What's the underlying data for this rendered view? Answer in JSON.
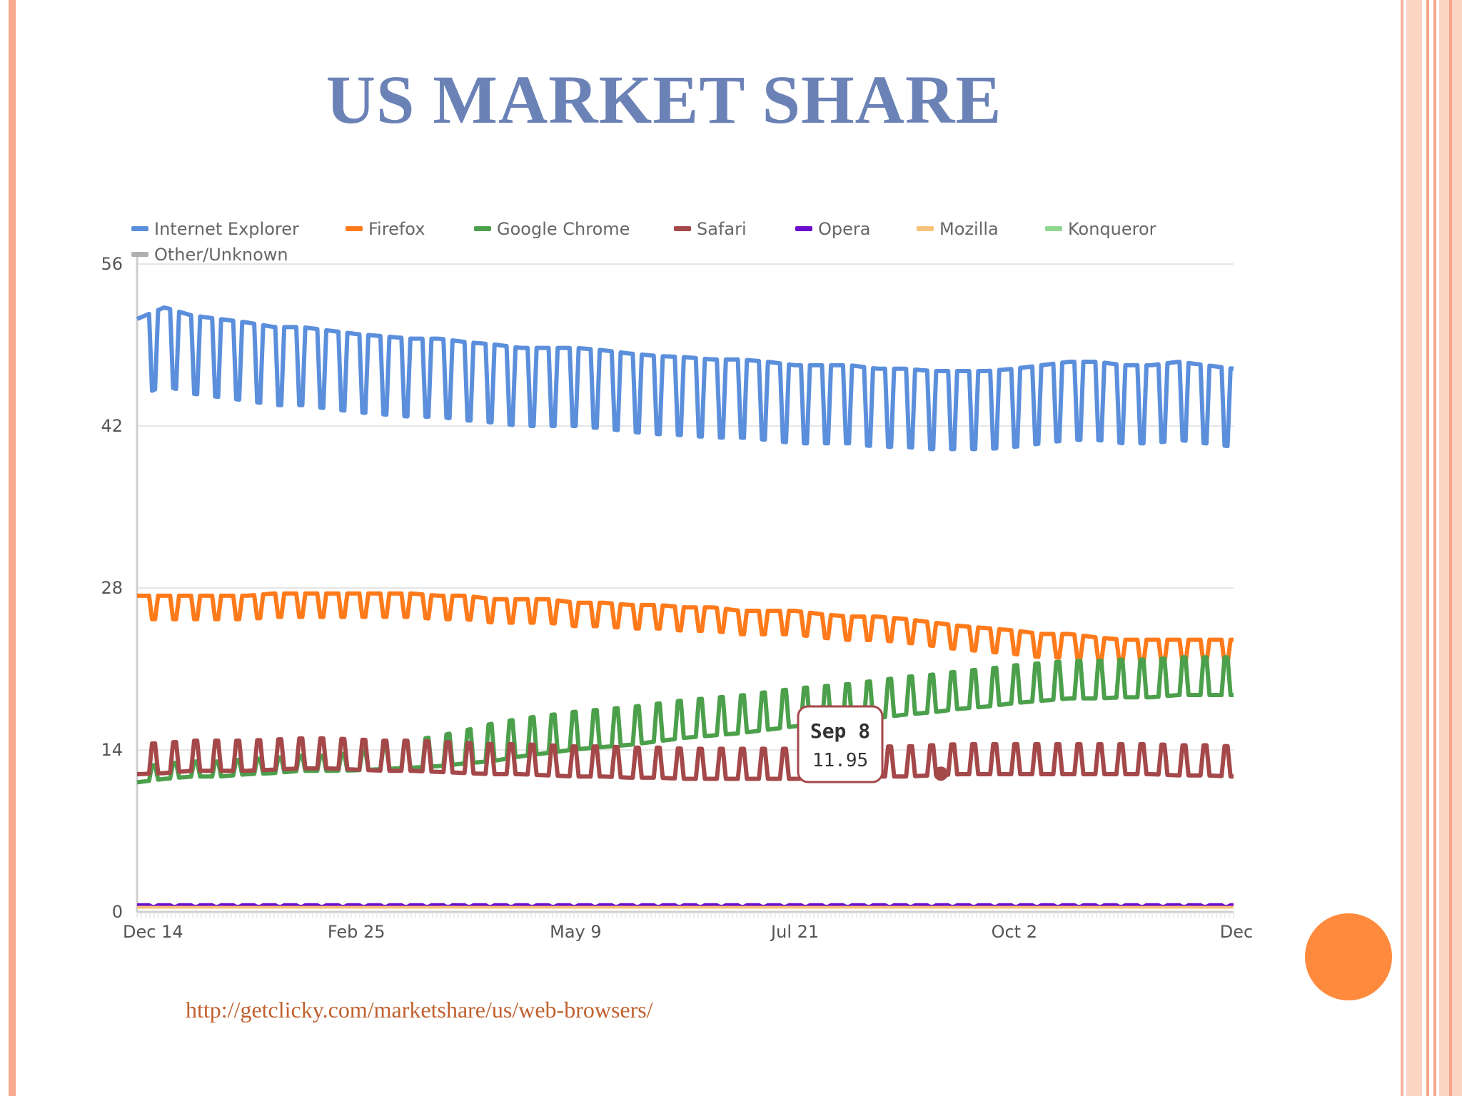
{
  "slide": {
    "title": "US MARKET SHARE",
    "source_url": "http://getclicky.com/marketshare/us/web-browsers/",
    "accent_color": "#6b82b6"
  },
  "chart_data": {
    "type": "line",
    "title": "",
    "xlabel": "",
    "ylabel": "",
    "ylim": [
      0,
      56
    ],
    "yticks": [
      0,
      14,
      28,
      42,
      56
    ],
    "xtick_labels": [
      "Dec 14",
      "Feb 25",
      "May 9",
      "Jul 21",
      "Oct 2",
      "Dec"
    ],
    "grid": true,
    "legend_position": "top",
    "legend": [
      {
        "name": "Internet Explorer",
        "color": "#5b8fdc"
      },
      {
        "name": "Firefox",
        "color": "#ff7a1a"
      },
      {
        "name": "Google Chrome",
        "color": "#4ca04c"
      },
      {
        "name": "Safari",
        "color": "#a5484a"
      },
      {
        "name": "Opera",
        "color": "#6a0dcc"
      },
      {
        "name": "Mozilla",
        "color": "#f9c27a"
      },
      {
        "name": "Konqueror",
        "color": "#8fd68f"
      },
      {
        "name": "Other/Unknown",
        "color": "#b0b0b0"
      }
    ],
    "series": [
      {
        "name": "Internet Explorer",
        "color": "#5b8fdc",
        "values": [
          49.5,
          50.5,
          49.8,
          49.5,
          49.2,
          48.8,
          48.8,
          48.5,
          48.2,
          48.0,
          47.8,
          47.8,
          47.5,
          47.3,
          47.0,
          47.0,
          47.0,
          46.8,
          46.5,
          46.3,
          46.2,
          46.0,
          46.0,
          45.8,
          45.5,
          45.5,
          45.5,
          45.2,
          45.2,
          45.0,
          45.0,
          45.0,
          45.2,
          45.5,
          45.8,
          45.8,
          45.5,
          45.5,
          45.8,
          45.5,
          45.2
        ],
        "amplitude": [
          5,
          5,
          5,
          5,
          5,
          5,
          5,
          5,
          5,
          5,
          5,
          5,
          5,
          5,
          5,
          5,
          5,
          5,
          5,
          5,
          5,
          5,
          5,
          5,
          5,
          5,
          5,
          5,
          5,
          5,
          5,
          5,
          5,
          5,
          5,
          5,
          5,
          5,
          5,
          5,
          5
        ]
      },
      {
        "name": "Firefox",
        "color": "#ff7a1a",
        "values": [
          26.8,
          26.8,
          26.8,
          26.8,
          26.8,
          27.0,
          27.0,
          27.0,
          27.0,
          27.0,
          27.0,
          26.8,
          26.8,
          26.5,
          26.5,
          26.5,
          26.2,
          26.2,
          26.0,
          26.0,
          25.8,
          25.8,
          25.5,
          25.5,
          25.5,
          25.2,
          25.0,
          25.0,
          24.8,
          24.5,
          24.2,
          24.0,
          23.8,
          23.5,
          23.5,
          23.2,
          23.0,
          23.0,
          23.0,
          23.0,
          23.0
        ],
        "amplitude": [
          1.5,
          1.5,
          1.5,
          1.5,
          1.5,
          1.5,
          1.5,
          1.5,
          1.5,
          1.5,
          1.5,
          1.5,
          1.5,
          1.5,
          1.5,
          1.5,
          1.5,
          1.5,
          1.5,
          1.5,
          1.5,
          1.5,
          1.5,
          1.5,
          1.5,
          1.5,
          1.5,
          1.5,
          1.5,
          1.5,
          1.5,
          1.5,
          1.5,
          1.5,
          1.5,
          1.5,
          1.5,
          1.5,
          1.5,
          1.5,
          1.5
        ]
      },
      {
        "name": "Google Chrome",
        "color": "#4ca04c",
        "values": [
          11.5,
          11.8,
          12.0,
          12.0,
          12.2,
          12.3,
          12.5,
          12.5,
          12.6,
          12.8,
          13.0,
          13.2,
          13.5,
          13.8,
          14.2,
          14.5,
          14.8,
          15.0,
          15.2,
          15.5,
          15.8,
          16.0,
          16.2,
          16.5,
          16.8,
          17.0,
          17.2,
          17.5,
          17.8,
          18.0,
          18.3,
          18.5,
          18.8,
          19.0,
          19.2,
          19.2,
          19.3,
          19.3,
          19.5,
          19.5,
          19.5
        ],
        "amplitude": [
          1,
          1,
          1,
          1,
          1,
          1,
          1,
          1,
          1.2,
          1.5,
          1.8,
          2,
          2.2,
          2.5,
          2.5,
          2.5,
          2.5,
          2.5,
          2.5,
          2.5,
          2.5,
          2.5,
          2.5,
          2.5,
          2.5,
          2.5,
          2.5,
          2.5,
          2.5,
          2.5,
          2.5,
          2.5,
          2.5,
          2.5,
          2.5,
          2.5,
          2.5,
          2.5,
          2.5,
          2.5,
          2.5
        ]
      },
      {
        "name": "Safari",
        "color": "#a5484a",
        "values": [
          12.5,
          12.6,
          12.8,
          12.8,
          12.8,
          12.9,
          13.0,
          13.0,
          12.9,
          12.8,
          12.8,
          12.7,
          12.6,
          12.5,
          12.5,
          12.4,
          12.3,
          12.3,
          12.2,
          12.2,
          12.1,
          12.1,
          12.1,
          12.1,
          12.1,
          12.2,
          12.2,
          12.3,
          12.3,
          12.4,
          12.5,
          12.5,
          12.5,
          12.5,
          12.5,
          12.5,
          12.5,
          12.5,
          12.4,
          12.4,
          12.3
        ],
        "amplitude": [
          2,
          2,
          2,
          2,
          2,
          2,
          2,
          2,
          2,
          2,
          2,
          2,
          2,
          2,
          2,
          2,
          2,
          2,
          2,
          2,
          2,
          2,
          2,
          2,
          2,
          2,
          2,
          2,
          2,
          2,
          2,
          2,
          2,
          2,
          2,
          2,
          2,
          2,
          2,
          2,
          2
        ]
      },
      {
        "name": "Opera",
        "color": "#6a0dcc",
        "values": [
          0.6,
          0.6,
          0.6,
          0.6,
          0.6,
          0.6,
          0.6,
          0.6,
          0.6,
          0.6,
          0.6,
          0.6,
          0.6,
          0.6,
          0.6,
          0.6,
          0.6,
          0.6,
          0.6,
          0.6,
          0.6,
          0.6,
          0.6,
          0.6,
          0.6,
          0.6,
          0.6,
          0.6,
          0.6,
          0.6,
          0.6,
          0.6,
          0.6,
          0.6,
          0.6,
          0.6,
          0.6,
          0.6,
          0.6,
          0.6,
          0.6
        ],
        "amplitude": [
          0.1,
          0.1,
          0.1,
          0.1,
          0.1,
          0.1,
          0.1,
          0.1,
          0.1,
          0.1,
          0.1,
          0.1,
          0.1,
          0.1,
          0.1,
          0.1,
          0.1,
          0.1,
          0.1,
          0.1,
          0.1,
          0.1,
          0.1,
          0.1,
          0.1,
          0.1,
          0.1,
          0.1,
          0.1,
          0.1,
          0.1,
          0.1,
          0.1,
          0.1,
          0.1,
          0.1,
          0.1,
          0.1,
          0.1,
          0.1,
          0.1
        ]
      },
      {
        "name": "Mozilla",
        "color": "#f9c27a",
        "values": [
          0.4,
          0.4,
          0.4,
          0.4,
          0.4,
          0.4,
          0.4,
          0.4,
          0.4,
          0.4,
          0.4,
          0.4,
          0.4,
          0.4,
          0.4,
          0.4,
          0.4,
          0.4,
          0.4,
          0.4,
          0.4,
          0.4,
          0.4,
          0.4,
          0.4,
          0.4,
          0.4,
          0.4,
          0.4,
          0.4,
          0.4,
          0.4,
          0.4,
          0.4,
          0.4,
          0.4,
          0.4,
          0.4,
          0.4,
          0.4,
          0.4
        ],
        "amplitude": [
          0,
          0,
          0,
          0,
          0,
          0,
          0,
          0,
          0,
          0,
          0,
          0,
          0,
          0,
          0,
          0,
          0,
          0,
          0,
          0,
          0,
          0,
          0,
          0,
          0,
          0,
          0,
          0,
          0,
          0,
          0,
          0,
          0,
          0,
          0,
          0,
          0,
          0,
          0,
          0,
          0
        ]
      }
    ],
    "tooltip": {
      "label": "Sep 8",
      "value": "11.95",
      "series": "Safari"
    }
  }
}
